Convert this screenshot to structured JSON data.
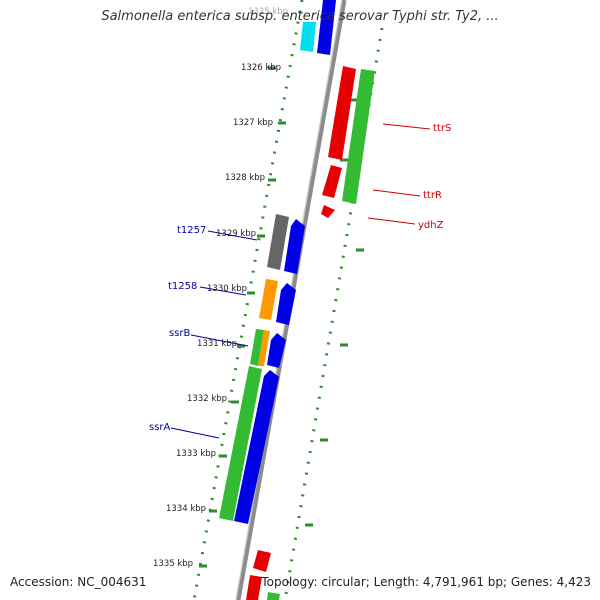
{
  "title": "Salmonella enterica subsp. enterica serovar Typhi str. Ty2, ...",
  "footer": {
    "accession": "Accession: NC_004631",
    "stats": "Topology: circular; Length: 4,791,961 bp; Genes: 4,423"
  },
  "ruler": {
    "ticks": [
      {
        "label": "1325 kbp",
        "kbp": 1325
      },
      {
        "label": "1326 kbp",
        "kbp": 1326
      },
      {
        "label": "1327 kbp",
        "kbp": 1327
      },
      {
        "label": "1328 kbp",
        "kbp": 1328
      },
      {
        "label": "1329 kbp",
        "kbp": 1329
      },
      {
        "label": "1330 kbp",
        "kbp": 1330
      },
      {
        "label": "1331 kbp",
        "kbp": 1331
      },
      {
        "label": "1332 kbp",
        "kbp": 1332
      },
      {
        "label": "1333 kbp",
        "kbp": 1333
      },
      {
        "label": "1334 kbp",
        "kbp": 1334
      },
      {
        "label": "1335 kbp",
        "kbp": 1335
      }
    ]
  },
  "gene_labels": {
    "reverse": [
      {
        "label": "t1257"
      },
      {
        "label": "t1258"
      },
      {
        "label": "ssrB"
      },
      {
        "label": "ssrA"
      }
    ],
    "forward": [
      {
        "label": "ttrS"
      },
      {
        "label": "ttrR"
      },
      {
        "label": "ydhZ"
      }
    ]
  },
  "colors": {
    "backbone": "#8c8c8c",
    "dots": "#2e8b2e",
    "cds_forward": "#e60000",
    "cds_reverse": "#0000e6",
    "orf": "#33bb33",
    "gray": "#666666",
    "orange": "#ff9900",
    "cyan": "#00ddee",
    "label_reverse": "#000099",
    "label_forward": "#cc0000"
  }
}
